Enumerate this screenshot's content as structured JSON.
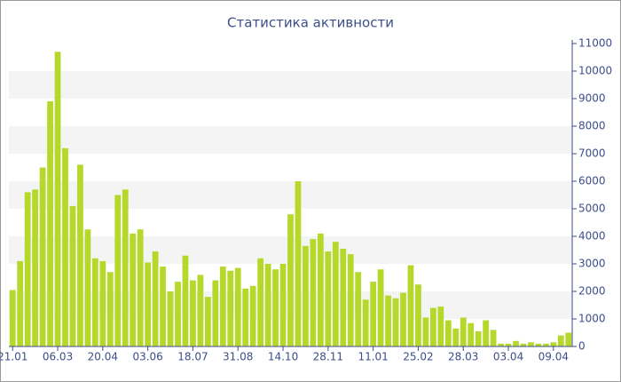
{
  "chart_data": {
    "type": "bar",
    "title": "Статистика активности",
    "categories": [
      "21.01",
      null,
      null,
      null,
      null,
      null,
      "06.03",
      null,
      null,
      null,
      null,
      null,
      "20.04",
      null,
      null,
      null,
      null,
      null,
      "03.06",
      null,
      null,
      null,
      null,
      null,
      "18.07",
      null,
      null,
      null,
      null,
      null,
      "31.08",
      null,
      null,
      null,
      null,
      null,
      "14.10",
      null,
      null,
      null,
      null,
      null,
      "28.11",
      null,
      null,
      null,
      null,
      null,
      "11.01",
      null,
      null,
      null,
      null,
      null,
      "25.02",
      null,
      null,
      null,
      null,
      null,
      "28.03",
      null,
      null,
      null,
      null,
      null,
      "03.04",
      null,
      null,
      null,
      null,
      null,
      "09.04",
      null,
      null
    ],
    "values": [
      2050,
      3100,
      5600,
      5700,
      6500,
      8900,
      10700,
      7200,
      5100,
      6600,
      4250,
      3200,
      3100,
      2700,
      5500,
      5700,
      4100,
      4250,
      3050,
      3450,
      2900,
      2000,
      2350,
      3300,
      2400,
      2600,
      1800,
      2400,
      2900,
      2750,
      2850,
      2100,
      2200,
      3200,
      3000,
      2800,
      3000,
      4800,
      6000,
      3650,
      3900,
      4100,
      3450,
      3800,
      3550,
      3350,
      2700,
      1700,
      2350,
      2800,
      1850,
      1750,
      1950,
      2950,
      2250,
      1050,
      1400,
      1450,
      950,
      650,
      1050,
      850,
      550,
      950,
      600,
      100,
      100,
      200,
      100,
      150,
      100,
      100,
      150,
      400,
      500
    ],
    "color": "#b5d82a",
    "ylim": [
      0,
      11000
    ],
    "yticks": [
      0,
      1000,
      2000,
      3000,
      4000,
      5000,
      6000,
      7000,
      8000,
      9000,
      10000,
      11000
    ],
    "grid": true
  }
}
